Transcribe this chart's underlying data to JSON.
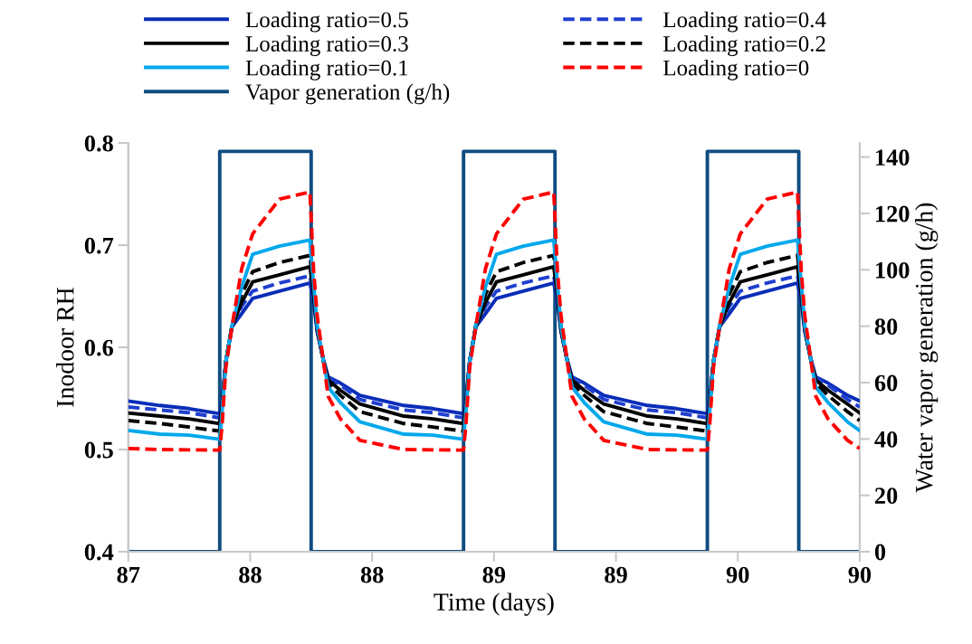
{
  "chart_data": {
    "type": "line",
    "xlabel": "Time (days)",
    "ylabel": "Inodoor RH",
    "y2label": "Water vapor generation (g/h)",
    "xlim": [
      87,
      90
    ],
    "xticks": [
      87,
      {
        "value": 87.5,
        "label": "88"
      },
      88,
      {
        "value": 88.5,
        "label": "89"
      },
      89,
      {
        "value": 89.5,
        "label": "90"
      },
      90
    ],
    "ylim": [
      0.4,
      0.8
    ],
    "yticks": [
      0.4,
      0.5,
      0.6,
      0.7,
      0.8
    ],
    "y2lim": [
      0,
      145
    ],
    "y2ticks": [
      0,
      20,
      40,
      60,
      80,
      100,
      120,
      140
    ],
    "grid": false,
    "legend": "top",
    "marker": "none",
    "x": [
      87,
      87.13,
      87.25,
      87.375,
      87.385,
      87.4,
      87.425,
      87.465,
      87.51,
      87.62,
      87.745,
      87.76,
      87.775,
      87.8,
      87.82,
      87.87,
      87.95,
      88.13,
      88.25,
      88.375,
      88.385,
      88.4,
      88.425,
      88.465,
      88.51,
      88.62,
      88.745,
      88.76,
      88.775,
      88.8,
      88.82,
      88.87,
      88.95,
      89.13,
      89.25,
      89.375,
      89.385,
      89.4,
      89.425,
      89.465,
      89.51,
      89.62,
      89.745,
      89.76,
      89.775,
      89.8,
      89.82,
      89.87,
      89.95,
      90
    ],
    "series": [
      {
        "name": "Loading ratio=0.5",
        "color": "#0a2db8",
        "line_style": "solid",
        "values": [
          0.5475,
          0.5431,
          0.54,
          0.535,
          0.55,
          0.586,
          0.62,
          0.633,
          0.648,
          0.655,
          0.663,
          0.645,
          0.615,
          0.588,
          0.571,
          0.565,
          0.553,
          0.5431,
          0.54,
          0.535,
          0.55,
          0.586,
          0.62,
          0.633,
          0.648,
          0.655,
          0.663,
          0.645,
          0.615,
          0.588,
          0.571,
          0.565,
          0.553,
          0.5431,
          0.54,
          0.535,
          0.55,
          0.586,
          0.62,
          0.633,
          0.648,
          0.655,
          0.663,
          0.645,
          0.615,
          0.588,
          0.571,
          0.565,
          0.553,
          0.5475
        ]
      },
      {
        "name": "Loading ratio=0.4",
        "color": "#1f3fcf",
        "line_style": "dashed",
        "values": [
          0.5416,
          0.5387,
          0.536,
          0.531,
          0.548,
          0.586,
          0.62,
          0.64,
          0.655,
          0.663,
          0.67,
          0.648,
          0.616,
          0.588,
          0.57,
          0.563,
          0.549,
          0.5387,
          0.536,
          0.531,
          0.548,
          0.586,
          0.62,
          0.64,
          0.655,
          0.663,
          0.67,
          0.648,
          0.616,
          0.588,
          0.57,
          0.563,
          0.549,
          0.5387,
          0.536,
          0.531,
          0.548,
          0.586,
          0.62,
          0.64,
          0.655,
          0.663,
          0.67,
          0.648,
          0.616,
          0.588,
          0.57,
          0.563,
          0.549,
          0.5416
        ]
      },
      {
        "name": "Loading ratio=0.3",
        "color": "#000000",
        "line_style": "solid",
        "values": [
          0.5357,
          0.5327,
          0.53,
          0.5254,
          0.545,
          0.586,
          0.62,
          0.644,
          0.664,
          0.671,
          0.679,
          0.652,
          0.617,
          0.587,
          0.568,
          0.558,
          0.5445,
          0.5327,
          0.53,
          0.5254,
          0.545,
          0.586,
          0.62,
          0.644,
          0.664,
          0.671,
          0.679,
          0.652,
          0.617,
          0.587,
          0.568,
          0.558,
          0.5445,
          0.5327,
          0.53,
          0.5254,
          0.545,
          0.586,
          0.62,
          0.644,
          0.664,
          0.671,
          0.679,
          0.652,
          0.617,
          0.587,
          0.568,
          0.558,
          0.5445,
          0.5357
        ]
      },
      {
        "name": "Loading ratio=0.2",
        "color": "#000000",
        "line_style": "dashed",
        "values": [
          0.5283,
          0.5254,
          0.522,
          0.518,
          0.542,
          0.586,
          0.621,
          0.652,
          0.674,
          0.683,
          0.69,
          0.656,
          0.618,
          0.587,
          0.565,
          0.553,
          0.537,
          0.5254,
          0.522,
          0.518,
          0.542,
          0.586,
          0.621,
          0.652,
          0.674,
          0.683,
          0.69,
          0.656,
          0.618,
          0.587,
          0.565,
          0.553,
          0.537,
          0.5254,
          0.522,
          0.518,
          0.542,
          0.586,
          0.621,
          0.652,
          0.674,
          0.683,
          0.69,
          0.656,
          0.618,
          0.587,
          0.565,
          0.553,
          0.537,
          0.5283
        ]
      },
      {
        "name": "Loading ratio=0.1",
        "color": "#00a8ec",
        "line_style": "solid",
        "values": [
          0.5186,
          0.515,
          0.514,
          0.51,
          0.538,
          0.586,
          0.621,
          0.659,
          0.691,
          0.699,
          0.705,
          0.662,
          0.62,
          0.587,
          0.561,
          0.546,
          0.527,
          0.515,
          0.514,
          0.51,
          0.538,
          0.586,
          0.621,
          0.659,
          0.691,
          0.699,
          0.705,
          0.662,
          0.62,
          0.587,
          0.561,
          0.546,
          0.527,
          0.515,
          0.514,
          0.51,
          0.538,
          0.586,
          0.621,
          0.659,
          0.691,
          0.699,
          0.705,
          0.662,
          0.62,
          0.587,
          0.561,
          0.546,
          0.527,
          0.5186
        ]
      },
      {
        "name": "Loading ratio=0",
        "color": "#ff0000",
        "line_style": "dashed",
        "values": [
          0.501,
          0.5,
          0.4997,
          0.4994,
          0.525,
          0.58,
          0.62,
          0.677,
          0.711,
          0.745,
          0.752,
          0.675,
          0.63,
          0.587,
          0.552,
          0.53,
          0.509,
          0.5,
          0.4997,
          0.4994,
          0.525,
          0.58,
          0.62,
          0.677,
          0.711,
          0.745,
          0.752,
          0.675,
          0.63,
          0.587,
          0.552,
          0.53,
          0.509,
          0.5,
          0.4997,
          0.4994,
          0.525,
          0.58,
          0.62,
          0.677,
          0.711,
          0.745,
          0.752,
          0.675,
          0.63,
          0.587,
          0.552,
          0.53,
          0.509,
          0.501
        ]
      },
      {
        "name": "Vapor generation (g/h)",
        "color": "#0f4c81",
        "line_style": "solid",
        "axis": "y2",
        "x": [
          87,
          87.375,
          87.375,
          87.75,
          87.75,
          88.375,
          88.375,
          88.75,
          88.75,
          89.375,
          89.375,
          89.75,
          89.75,
          90
        ],
        "values": [
          0,
          0,
          142,
          142,
          0,
          0,
          142,
          142,
          0,
          0,
          142,
          142,
          0,
          0
        ]
      }
    ]
  }
}
